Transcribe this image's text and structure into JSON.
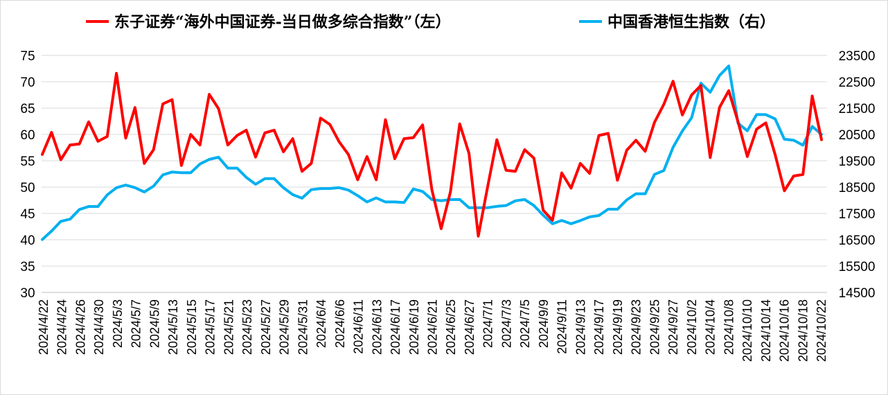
{
  "chart_data": {
    "type": "line",
    "legend_position": "top",
    "grid": true,
    "y_left": {
      "ticks": [
        30,
        35,
        40,
        45,
        50,
        55,
        60,
        65,
        70,
        75
      ],
      "ylim": [
        30,
        75
      ]
    },
    "y_right": {
      "ticks": [
        14500,
        15500,
        16500,
        17500,
        18500,
        19500,
        20500,
        21500,
        22500,
        23500
      ],
      "ylim": [
        14500,
        23500
      ]
    },
    "x_tick_labels": [
      "2024/4/22",
      "2024/4/24",
      "2024/4/26",
      "2024/4/30",
      "2024/5/3",
      "2024/5/7",
      "2024/5/9",
      "2024/5/13",
      "2024/5/15",
      "2024/5/17",
      "2024/5/21",
      "2024/5/23",
      "2024/5/27",
      "2024/5/29",
      "2024/5/31",
      "2024/6/4",
      "2024/6/6",
      "2024/6/11",
      "2024/6/13",
      "2024/6/17",
      "2024/6/19",
      "2024/6/21",
      "2024/6/25",
      "2024/6/27",
      "2024/7/1",
      "2024/7/3",
      "2024/7/5",
      "2024/9/9",
      "2024/9/11",
      "2024/9/13",
      "2024/9/17",
      "2024/9/19",
      "2024/9/23",
      "2024/9/25",
      "2024/9/27",
      "2024/10/2",
      "2024/10/4",
      "2024/10/8",
      "2024/10/10",
      "2024/10/14",
      "2024/10/16",
      "2024/10/18",
      "2024/10/22"
    ],
    "series": [
      {
        "name": "东子证券“海外中国证券-当日做多综合指数”（左）",
        "axis": "left",
        "color": "#ff0000",
        "values": [
          56.2,
          60.4,
          55.2,
          58.0,
          58.2,
          62.4,
          58.7,
          59.6,
          71.6,
          59.3,
          65.1,
          54.5,
          57.1,
          65.8,
          66.6,
          54.1,
          60.0,
          58.0,
          67.6,
          64.9,
          58.0,
          59.8,
          60.8,
          55.7,
          60.3,
          60.8,
          56.7,
          59.2,
          53.0,
          54.5,
          63.1,
          61.9,
          58.6,
          56.2,
          51.4,
          55.8,
          51.4,
          62.8,
          55.4,
          59.2,
          59.4,
          61.8,
          49.5,
          42.1,
          49.1,
          62.0,
          56.4,
          40.7,
          50.0,
          59.0,
          53.2,
          53.0,
          57.1,
          55.5,
          45.6,
          43.7,
          52.7,
          49.8,
          54.5,
          52.6,
          59.8,
          60.2,
          51.3,
          57.0,
          58.9,
          56.8,
          62.3,
          65.7,
          70.1,
          63.7,
          67.5,
          69.3,
          55.6,
          65.1,
          68.3,
          62.4,
          55.8,
          61.0,
          62.2,
          56.2,
          49.3,
          52.1,
          52.4,
          67.3,
          59.0
        ]
      },
      {
        "name": "中国香港恒生指数（右）",
        "axis": "right",
        "color": "#00b0f0",
        "values": [
          16511,
          16829,
          17201,
          17284,
          17651,
          17763,
          17763,
          18206,
          18476,
          18578,
          18479,
          18313,
          18537,
          18964,
          19073,
          19045,
          19045,
          19376,
          19553,
          19637,
          19220,
          19220,
          18868,
          18608,
          18822,
          18822,
          18477,
          18212,
          18080,
          18403,
          18445,
          18447,
          18480,
          18386,
          18177,
          17937,
          18089,
          17936,
          17936,
          17915,
          18430,
          18335,
          18026,
          17983,
          18027,
          18028,
          17719,
          17719,
          17719,
          17769,
          17799,
          17978,
          18028,
          17799,
          17434,
          17108,
          17234,
          17108,
          17228,
          17369,
          17422,
          17660,
          17660,
          18013,
          18248,
          18248,
          18982,
          19130,
          20010,
          20632,
          21133,
          22444,
          22102,
          22736,
          23099,
          20926,
          20637,
          21252,
          21252,
          21092,
          20318,
          20279,
          20093,
          20803,
          20500
        ]
      }
    ]
  }
}
